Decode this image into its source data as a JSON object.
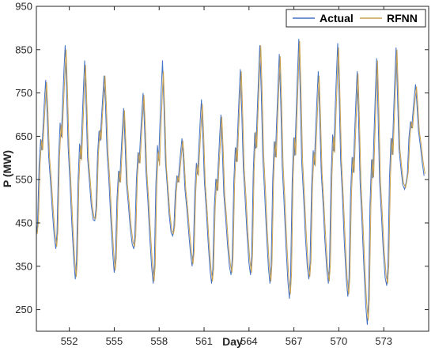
{
  "chart_data": {
    "type": "line",
    "xlabel": "Day",
    "ylabel": "P (MW)",
    "xlim": [
      549.8,
      576.0
    ],
    "ylim": [
      200,
      950
    ],
    "xticks": [
      552,
      555,
      558,
      561,
      564,
      567,
      570,
      573
    ],
    "yticks": [
      250,
      350,
      450,
      550,
      650,
      750,
      850,
      950
    ],
    "grid": false,
    "legend_position": "top-right",
    "colors": {
      "Actual": "#4472c4",
      "RFNN": "#c8a050"
    },
    "series": [
      {
        "name": "Actual",
        "cycles": [
          {
            "peak": 780,
            "trough": 420
          },
          {
            "peak": 860,
            "trough": 390
          },
          {
            "peak": 825,
            "trough": 320
          },
          {
            "peak": 790,
            "trough": 455
          },
          {
            "peak": 715,
            "trough": 335
          },
          {
            "peak": 750,
            "trough": 390
          },
          {
            "peak": 825,
            "trough": 310
          },
          {
            "peak": 645,
            "trough": 420
          },
          {
            "peak": 735,
            "trough": 350
          },
          {
            "peak": 700,
            "trough": 310
          },
          {
            "peak": 805,
            "trough": 330
          },
          {
            "peak": 860,
            "trough": 330
          },
          {
            "peak": 840,
            "trough": 310
          },
          {
            "peak": 875,
            "trough": 275
          },
          {
            "peak": 800,
            "trough": 320
          },
          {
            "peak": 865,
            "trough": 310
          },
          {
            "peak": 800,
            "trough": 280
          },
          {
            "peak": 830,
            "trough": 215
          },
          {
            "peak": 855,
            "trough": 305
          },
          {
            "peak": 770,
            "trough": 545
          }
        ]
      },
      {
        "name": "RFNN",
        "cycles": [
          {
            "peak": 775,
            "trough": 425
          },
          {
            "peak": 850,
            "trough": 395
          },
          {
            "peak": 815,
            "trough": 325
          },
          {
            "peak": 790,
            "trough": 460
          },
          {
            "peak": 710,
            "trough": 340
          },
          {
            "peak": 745,
            "trough": 395
          },
          {
            "peak": 800,
            "trough": 315
          },
          {
            "peak": 640,
            "trough": 425
          },
          {
            "peak": 725,
            "trough": 355
          },
          {
            "peak": 695,
            "trough": 315
          },
          {
            "peak": 800,
            "trough": 335
          },
          {
            "peak": 860,
            "trough": 335
          },
          {
            "peak": 835,
            "trough": 315
          },
          {
            "peak": 870,
            "trough": 285
          },
          {
            "peak": 790,
            "trough": 325
          },
          {
            "peak": 855,
            "trough": 315
          },
          {
            "peak": 795,
            "trough": 285
          },
          {
            "peak": 825,
            "trough": 225
          },
          {
            "peak": 850,
            "trough": 310
          },
          {
            "peak": 765,
            "trough": 550
          }
        ]
      }
    ]
  }
}
